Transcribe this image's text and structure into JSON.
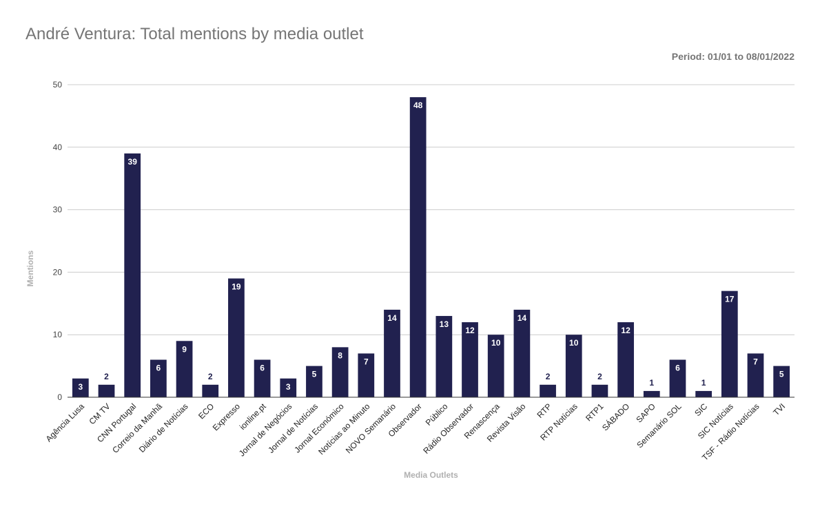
{
  "chart_data": {
    "type": "bar",
    "title": "André Ventura: Total mentions by media outlet",
    "subtitle": "Period: 01/01 to 08/01/2022",
    "xlabel": "Media Outlets",
    "ylabel": "Mentions",
    "ylim": [
      0,
      50
    ],
    "yticks": [
      "0",
      "10",
      "20",
      "30",
      "40",
      "50"
    ],
    "grid": true,
    "legend": "none",
    "bar_color": "#21214f",
    "categories": [
      "Agência Lusa",
      "CM TV",
      "CNN Portugal",
      "Correio da Manhã",
      "Diário de Notícias",
      "ECO",
      "Expresso",
      "ionline.pt",
      "Jornal de Negócios",
      "Jornal de Notícias",
      "Jornal Económico",
      "Notícias ao Minuto",
      "NOVO Semanário",
      "Observador",
      "Público",
      "Rádio Observador",
      "Renascença",
      "Revista Visão",
      "RTP",
      "RTP Notícias",
      "RTP1",
      "SÁBADO",
      "SAPO",
      "Semanário SOL",
      "SIC",
      "SIC Notícias",
      "TSF - Rádio Notícias",
      "TVI"
    ],
    "values": [
      3,
      2,
      39,
      6,
      9,
      2,
      19,
      6,
      3,
      5,
      8,
      7,
      14,
      48,
      13,
      12,
      10,
      14,
      2,
      10,
      2,
      12,
      1,
      6,
      1,
      17,
      7,
      5
    ]
  }
}
